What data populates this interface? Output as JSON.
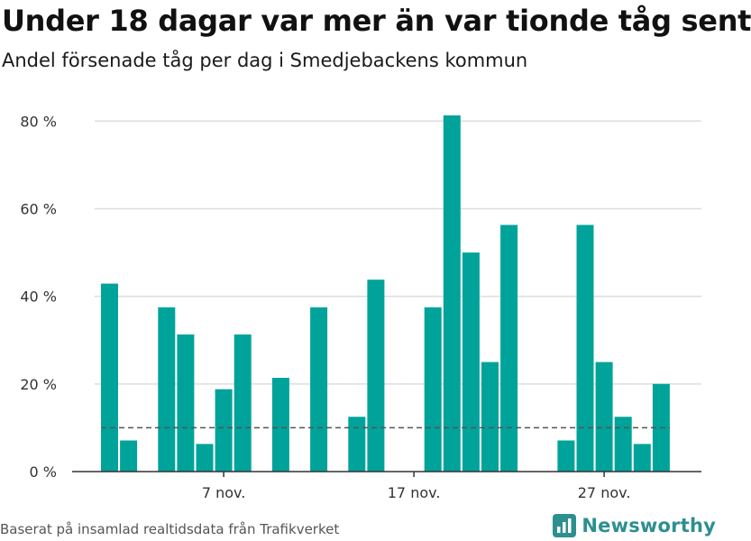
{
  "title": "Under 18 dagar var mer än var tionde tåg sent",
  "subtitle": "Andel försenade tåg per dag i Smedjebackens kommun",
  "source": "Baserat på insamlad realtidsdata från Trafikverket",
  "brand": {
    "name": "Newsworthy",
    "icon": "newsworthy-logo-icon",
    "color": "#2e8f8f"
  },
  "colors": {
    "bar": "#00a39a",
    "grid": "#dddddd",
    "axis": "#333333",
    "reference_line": "#555555"
  },
  "chart_data": {
    "type": "bar",
    "title": "Under 18 dagar var mer än var tionde tåg sent",
    "subtitle": "Andel försenade tåg per dag i Smedjebackens kommun",
    "x": [
      "2023-11-01",
      "2023-11-02",
      "2023-11-03",
      "2023-11-04",
      "2023-11-05",
      "2023-11-06",
      "2023-11-07",
      "2023-11-08",
      "2023-11-09",
      "2023-11-10",
      "2023-11-11",
      "2023-11-12",
      "2023-11-13",
      "2023-11-14",
      "2023-11-15",
      "2023-11-16",
      "2023-11-17",
      "2023-11-18",
      "2023-11-19",
      "2023-11-20",
      "2023-11-21",
      "2023-11-22",
      "2023-11-23",
      "2023-11-24",
      "2023-11-25",
      "2023-11-26",
      "2023-11-27",
      "2023-11-28",
      "2023-11-29",
      "2023-11-30"
    ],
    "values": [
      42.9,
      7.1,
      0,
      37.5,
      31.3,
      6.3,
      18.8,
      31.3,
      0,
      21.4,
      0,
      37.5,
      0,
      12.5,
      43.8,
      0,
      0,
      37.5,
      81.3,
      50.0,
      25.0,
      56.3,
      0,
      0,
      7.1,
      56.3,
      25.0,
      12.5,
      6.3,
      20.0
    ],
    "y_unit": "%",
    "ylim": [
      0,
      85
    ],
    "y_ticks": [
      0,
      20,
      40,
      60,
      80
    ],
    "y_tick_labels": [
      "0 %",
      "20 %",
      "40 %",
      "60 %",
      "80 %"
    ],
    "x_tick_labels": [
      {
        "date": "2023-11-07",
        "label": "7 nov."
      },
      {
        "date": "2023-11-17",
        "label": "17 nov."
      },
      {
        "date": "2023-11-27",
        "label": "27 nov."
      }
    ],
    "reference_line": {
      "value": 10,
      "style": "dashed"
    },
    "grid": true,
    "legend": "none"
  }
}
